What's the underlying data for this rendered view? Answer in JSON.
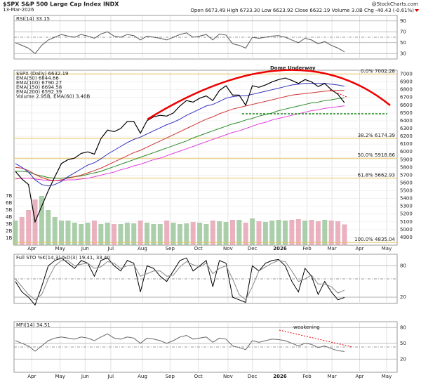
{
  "header": {
    "title": "$SPX S&P 500 Large Cap Index INDX",
    "date": "13-Mar-2026",
    "source": "@StockCharts.com",
    "quote": "Open 6673.49 High 6733.30 Low 6623.92 Close 6632.19 Volume 3.0B Chg -40.43 (-0.61%)"
  },
  "chart_data": [
    {
      "type": "line",
      "title": "RSI(14) 33.15",
      "ylim": [
        20,
        100
      ],
      "yticks": [
        30,
        50,
        70,
        90
      ],
      "series": [
        {
          "color": "#555555",
          "values": [
            50,
            45,
            40,
            30,
            45,
            55,
            60,
            65,
            62,
            60,
            65,
            62,
            58,
            66,
            70,
            62,
            60,
            65,
            63,
            55,
            62,
            60,
            58,
            55,
            60,
            65,
            68,
            60,
            62,
            65,
            55,
            66,
            64,
            48,
            45,
            40,
            60,
            58,
            60,
            62,
            63,
            60,
            55,
            50,
            58,
            55,
            48,
            52,
            45,
            40,
            33.15
          ]
        }
      ]
    },
    {
      "type": "line",
      "ylim": [
        4800,
        7050
      ],
      "yticks": [
        4900,
        5000,
        5100,
        5200,
        5300,
        5400,
        5500,
        5600,
        5700,
        5800,
        5900,
        6000,
        6100,
        6200,
        6300,
        6400,
        6500,
        6600,
        6700,
        6800,
        6900,
        7000
      ],
      "xlim": [
        -0.2,
        58
      ],
      "xticks": [
        {
          "value": 2.5,
          "label": "Apr"
        },
        {
          "value": 6.8,
          "label": "May"
        },
        {
          "value": 10.6,
          "label": "Jun"
        },
        {
          "value": 14.5,
          "label": "Jul"
        },
        {
          "value": 19.3,
          "label": "Aug"
        },
        {
          "value": 23.5,
          "label": "Sep"
        },
        {
          "value": 27.8,
          "label": "Oct"
        },
        {
          "value": 32.3,
          "label": "Nov"
        },
        {
          "value": 36,
          "label": "Dec"
        },
        {
          "value": 40.2,
          "label": "2026"
        },
        {
          "value": 44.3,
          "label": "Feb"
        },
        {
          "value": 48.1,
          "label": "Mar"
        },
        {
          "value": 52.3,
          "label": "Apr"
        },
        {
          "value": 56.4,
          "label": "May"
        }
      ],
      "annotation": "Dome Underway",
      "series": [
        {
          "name": "$SPX (Daily) 6632.19",
          "color": "#000000",
          "values": [
            5750,
            5650,
            5580,
            5100,
            5300,
            5500,
            5680,
            5850,
            5900,
            5920,
            5980,
            6000,
            5970,
            6170,
            6280,
            6260,
            6300,
            6390,
            6390,
            6240,
            6400,
            6450,
            6470,
            6460,
            6500,
            6590,
            6660,
            6640,
            6690,
            6720,
            6660,
            6790,
            6850,
            6730,
            6730,
            6600,
            6850,
            6830,
            6860,
            6900,
            6930,
            6950,
            6920,
            6880,
            6930,
            6900,
            6840,
            6880,
            6800,
            6740,
            6632.19
          ]
        },
        {
          "name": "EMA(50) 6844.66",
          "color": "#3030c0",
          "values": [
            5850,
            5800,
            5740,
            5640,
            5580,
            5560,
            5580,
            5620,
            5680,
            5730,
            5780,
            5830,
            5860,
            5910,
            5970,
            6020,
            6070,
            6120,
            6160,
            6190,
            6230,
            6270,
            6310,
            6350,
            6380,
            6420,
            6470,
            6510,
            6550,
            6590,
            6610,
            6650,
            6690,
            6710,
            6720,
            6720,
            6740,
            6760,
            6780,
            6800,
            6820,
            6840,
            6860,
            6870,
            6880,
            6880,
            6880,
            6880,
            6870,
            6860,
            6844.66
          ]
        },
        {
          "name": "EMA(100) 6790.27",
          "color": "#cc3333",
          "values": [
            5800,
            5790,
            5760,
            5710,
            5670,
            5640,
            5630,
            5640,
            5660,
            5680,
            5700,
            5730,
            5760,
            5790,
            5830,
            5870,
            5910,
            5950,
            5990,
            6020,
            6060,
            6100,
            6140,
            6180,
            6220,
            6260,
            6300,
            6340,
            6380,
            6420,
            6450,
            6490,
            6520,
            6550,
            6570,
            6590,
            6610,
            6630,
            6650,
            6670,
            6690,
            6710,
            6730,
            6740,
            6750,
            6760,
            6770,
            6780,
            6785,
            6790,
            6790.27
          ]
        },
        {
          "name": "EMA(150) 6694.58",
          "color": "#2a8a2a",
          "values": [
            5750,
            5750,
            5740,
            5710,
            5690,
            5670,
            5660,
            5660,
            5670,
            5680,
            5690,
            5710,
            5730,
            5750,
            5780,
            5810,
            5840,
            5870,
            5900,
            5930,
            5960,
            5990,
            6020,
            6050,
            6080,
            6110,
            6140,
            6180,
            6210,
            6240,
            6270,
            6300,
            6330,
            6360,
            6380,
            6410,
            6430,
            6460,
            6480,
            6500,
            6530,
            6550,
            6570,
            6590,
            6610,
            6630,
            6640,
            6660,
            6670,
            6685,
            6694.58
          ]
        },
        {
          "name": "EMA(200) 6592.39",
          "color": "#e040e0",
          "values": [
            5650,
            5660,
            5660,
            5650,
            5640,
            5630,
            5630,
            5630,
            5640,
            5640,
            5650,
            5660,
            5680,
            5700,
            5720,
            5740,
            5770,
            5790,
            5820,
            5840,
            5870,
            5900,
            5920,
            5950,
            5980,
            6010,
            6040,
            6070,
            6100,
            6130,
            6160,
            6190,
            6220,
            6250,
            6270,
            6300,
            6330,
            6360,
            6380,
            6410,
            6430,
            6450,
            6470,
            6490,
            6510,
            6530,
            6540,
            6560,
            6570,
            6580,
            6592.39
          ]
        }
      ],
      "volume": {
        "name": "Volume 2.95B, EMA(60) 3.40B",
        "ylim": [
          0,
          7.1
        ],
        "yticks": [
          {
            "value": 1,
            "label": "1B"
          },
          {
            "value": 2,
            "label": "2B"
          },
          {
            "value": 3,
            "label": "3B"
          },
          {
            "value": 4,
            "label": "4B"
          },
          {
            "value": 5,
            "label": "5B"
          },
          {
            "value": 6,
            "label": "6B"
          },
          {
            "value": 7,
            "label": "7B"
          }
        ],
        "values": [
          3.5,
          4,
          5,
          6.5,
          7,
          5,
          4,
          3.5,
          3.5,
          3.2,
          3,
          3.2,
          3.5,
          3,
          3.2,
          3,
          3,
          3.2,
          3.1,
          3.5,
          3.2,
          3,
          3,
          3.5,
          3.2,
          3,
          3.1,
          3.3,
          3.2,
          3,
          3.5,
          3.4,
          3.3,
          3.6,
          3.6,
          3.2,
          3.8,
          3.4,
          3.3,
          3.5,
          3.6,
          3.5,
          3.6,
          3.7,
          3.5,
          3.6,
          3.4,
          3.6,
          3.5,
          3.4,
          2.95
        ]
      },
      "fib_levels": [
        {
          "value": 7002.28,
          "label": "0.0% 7002.28"
        },
        {
          "value": 6174.39,
          "label": "38.2% 6174.39"
        },
        {
          "value": 5918.66,
          "label": "50.0% 5918.66"
        },
        {
          "value": 5662.93,
          "label": "61.8% 5662.93"
        },
        {
          "value": 4835.04,
          "label": "100.0% 4835.04"
        }
      ]
    },
    {
      "type": "line",
      "title": "Full STO %K(14,3) %D(3) 19.41, 33.40",
      "ylim": [
        8,
        102
      ],
      "yticks": [
        20,
        80
      ],
      "series": [
        {
          "color": "#000000",
          "values": [
            50,
            30,
            20,
            5,
            40,
            80,
            90,
            95,
            85,
            75,
            90,
            85,
            60,
            90,
            95,
            80,
            70,
            90,
            85,
            30,
            80,
            75,
            60,
            50,
            70,
            90,
            95,
            70,
            80,
            90,
            40,
            90,
            85,
            20,
            15,
            10,
            80,
            70,
            85,
            90,
            92,
            80,
            50,
            30,
            75,
            60,
            25,
            50,
            30,
            15,
            19.41
          ]
        },
        {
          "color": "#888888",
          "values": [
            55,
            40,
            25,
            15,
            25,
            55,
            80,
            90,
            90,
            80,
            83,
            85,
            75,
            78,
            88,
            85,
            75,
            80,
            82,
            60,
            65,
            70,
            70,
            60,
            62,
            78,
            88,
            82,
            78,
            85,
            65,
            75,
            80,
            55,
            25,
            15,
            40,
            70,
            78,
            85,
            90,
            88,
            70,
            50,
            55,
            62,
            45,
            45,
            40,
            28,
            33.4
          ]
        }
      ]
    },
    {
      "type": "line",
      "title": "MFI(14) 34.51",
      "annotation": "weakening",
      "ylim": [
        -5,
        91
      ],
      "yticks": [
        20,
        50,
        80
      ],
      "xticks": [
        {
          "value": 2.5,
          "label": "Apr"
        },
        {
          "value": 6.8,
          "label": "May"
        },
        {
          "value": 10.6,
          "label": "Jun"
        },
        {
          "value": 14.5,
          "label": "Jul"
        },
        {
          "value": 19.3,
          "label": "Aug"
        },
        {
          "value": 23.5,
          "label": "Sep"
        },
        {
          "value": 27.8,
          "label": "Oct"
        },
        {
          "value": 32.3,
          "label": "Nov"
        },
        {
          "value": 36,
          "label": "Dec"
        },
        {
          "value": 40.2,
          "label": "2026"
        },
        {
          "value": 44.3,
          "label": "Feb"
        },
        {
          "value": 48.1,
          "label": "Mar"
        },
        {
          "value": 52.3,
          "label": "Apr"
        },
        {
          "value": 56.4,
          "label": "May"
        }
      ],
      "series": [
        {
          "color": "#666666",
          "values": [
            55,
            50,
            45,
            35,
            45,
            55,
            60,
            62,
            60,
            58,
            62,
            60,
            55,
            62,
            68,
            60,
            58,
            62,
            60,
            50,
            60,
            58,
            55,
            50,
            55,
            62,
            65,
            58,
            60,
            62,
            52,
            60,
            58,
            45,
            42,
            38,
            55,
            52,
            55,
            58,
            57,
            55,
            50,
            45,
            50,
            48,
            42,
            45,
            40,
            36,
            34.51
          ]
        }
      ]
    }
  ]
}
